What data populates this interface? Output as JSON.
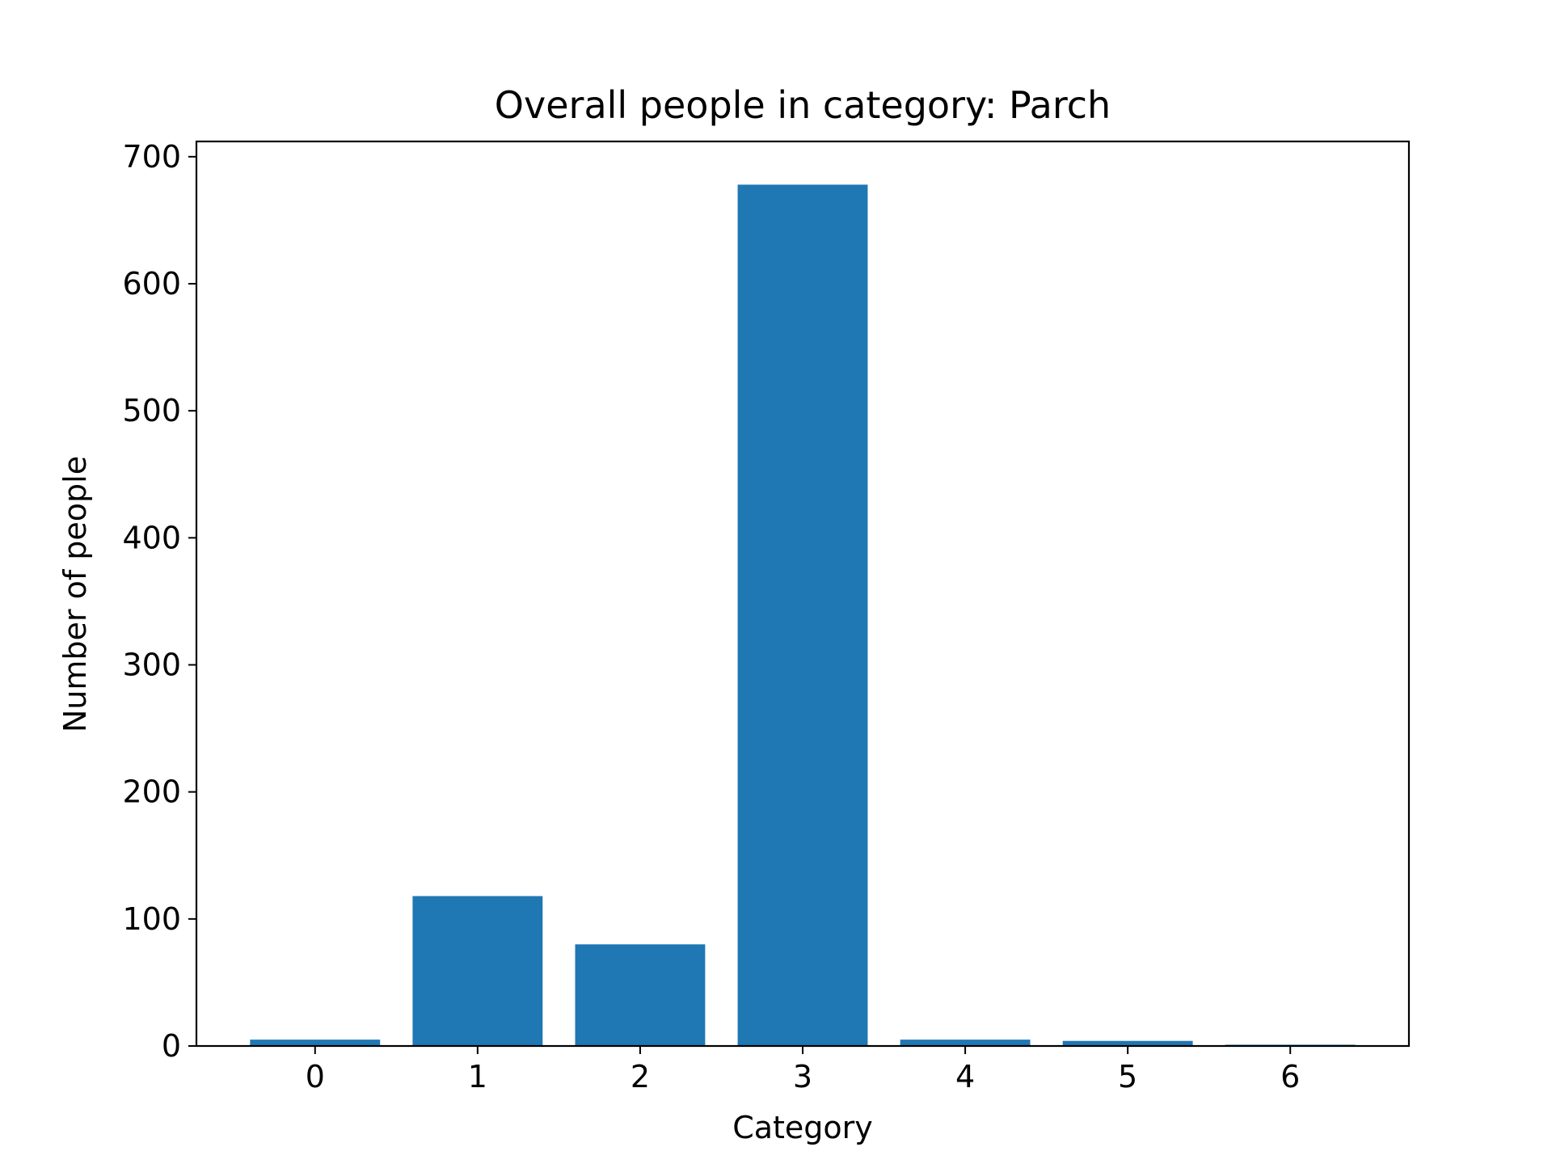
{
  "chart_data": {
    "type": "bar",
    "title": "Overall people in category:  Parch",
    "xlabel": "Category",
    "ylabel": "Number of people",
    "categories": [
      "0",
      "1",
      "2",
      "3",
      "4",
      "5",
      "6"
    ],
    "values": [
      5,
      118,
      80,
      678,
      5,
      4,
      1
    ],
    "ylim": [
      0,
      712
    ],
    "xlim": [
      -0.73,
      6.73
    ],
    "yticks": [
      0,
      100,
      200,
      300,
      400,
      500,
      600,
      700
    ],
    "ytick_labels": [
      "0",
      "100",
      "200",
      "300",
      "400",
      "500",
      "600",
      "700"
    ],
    "xticks": [
      0,
      1,
      2,
      3,
      4,
      5,
      6
    ],
    "xtick_labels": [
      "0",
      "1",
      "2",
      "3",
      "4",
      "5",
      "6"
    ],
    "bar_color": "#1f77b4",
    "grid": false,
    "legend": false
  }
}
